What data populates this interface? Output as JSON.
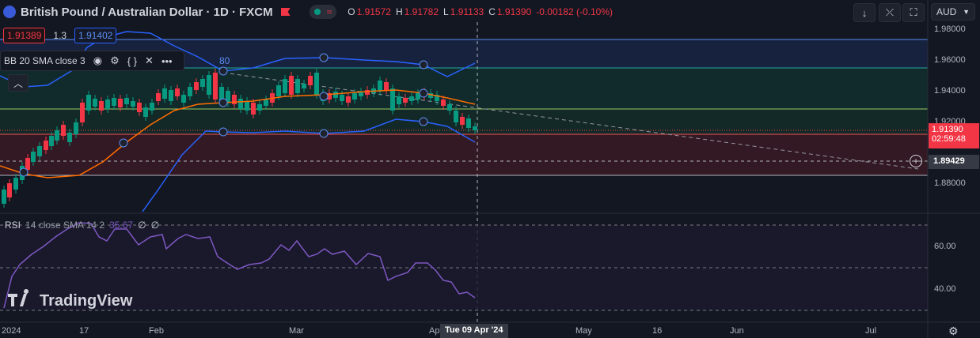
{
  "header": {
    "title": "British Pound / Australian Dollar · 1D · FXCM",
    "ohlc": [
      {
        "label": "O",
        "value": "1.91572"
      },
      {
        "label": "H",
        "value": "1.91782"
      },
      {
        "label": "L",
        "value": "1.91133"
      },
      {
        "label": "C",
        "value": "1.91390"
      }
    ],
    "change": "-0.00182 (-0.10%)",
    "currency": "AUD"
  },
  "trade": {
    "sell_price": "1.91389",
    "spread": "1.3",
    "buy_price": "1.91402"
  },
  "bb_legend": {
    "text": "BB 20 SMA close 3",
    "trailing": "80"
  },
  "rsi_legend": {
    "label": "RSI",
    "params": "14 close SMA 14 2",
    "value": "35.67",
    "extra1": "∅",
    "extra2": "∅"
  },
  "price_axis": {
    "ticks": [
      "1.98000",
      "1.96000",
      "1.94000",
      "1.92000",
      "1.88000"
    ],
    "current_price": "1.91390",
    "countdown": "02:59:48",
    "crosshair_price": "1.89429"
  },
  "rsi_axis": {
    "ticks": [
      "60.00",
      "40.00"
    ]
  },
  "time_axis": {
    "ticks": [
      "2024",
      "17",
      "Feb",
      "Mar",
      "Ap",
      "May",
      "16",
      "Jun",
      "Jul"
    ],
    "crosshair_date": "Tue 09 Apr '24"
  },
  "watermark": "TradingView",
  "colors": {
    "background": "#131722",
    "up": "#089981",
    "down": "#f23645",
    "bb_band": "#2962ff",
    "bb_basis": "#ff6d00",
    "rsi": "#7e57c2"
  },
  "icons": [
    "flag-icon",
    "eye-icon",
    "gear-icon",
    "code-icon",
    "close-icon",
    "more-icon",
    "down-arrow-icon",
    "collapse-icon",
    "fullscreen-icon",
    "plus-circle-icon",
    "settings-gear-icon",
    "chevron-up-icon"
  ]
}
